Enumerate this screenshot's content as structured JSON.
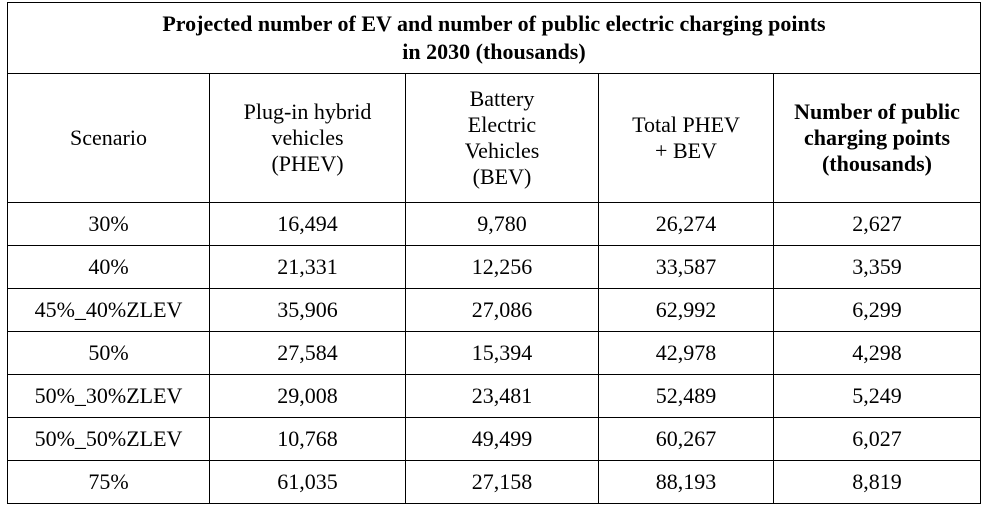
{
  "title": {
    "line1": "Projected number of EV and number of public electric charging points",
    "line2": "in 2030 (thousands)"
  },
  "headers": [
    {
      "lines": [
        "Scenario"
      ],
      "bold": false
    },
    {
      "lines": [
        "Plug-in hybrid",
        "vehicles",
        "(PHEV)"
      ],
      "bold": false
    },
    {
      "lines": [
        "Battery",
        "Electric",
        "Vehicles",
        "(BEV)"
      ],
      "bold": false
    },
    {
      "lines": [
        "Total PHEV",
        "+ BEV"
      ],
      "bold": false
    },
    {
      "lines": [
        "Number of public",
        "charging points",
        "(thousands)"
      ],
      "bold": true
    }
  ],
  "rows": [
    [
      "30%",
      "16,494",
      "9,780",
      "26,274",
      "2,627"
    ],
    [
      "40%",
      "21,331",
      "12,256",
      "33,587",
      "3,359"
    ],
    [
      "45%_40%ZLEV",
      "35,906",
      "27,086",
      "62,992",
      "6,299"
    ],
    [
      "50%",
      "27,584",
      "15,394",
      "42,978",
      "4,298"
    ],
    [
      "50%_30%ZLEV",
      "29,008",
      "23,481",
      "52,489",
      "5,249"
    ],
    [
      "50%_50%ZLEV",
      "10,768",
      "49,499",
      "60,267",
      "6,027"
    ],
    [
      "75%",
      "61,035",
      "27,158",
      "88,193",
      "8,819"
    ]
  ]
}
